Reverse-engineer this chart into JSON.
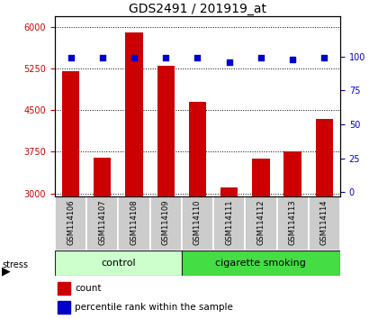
{
  "title": "GDS2491 / 201919_at",
  "samples": [
    "GSM114106",
    "GSM114107",
    "GSM114108",
    "GSM114109",
    "GSM114110",
    "GSM114111",
    "GSM114112",
    "GSM114113",
    "GSM114114"
  ],
  "counts": [
    5200,
    3650,
    5900,
    5300,
    4650,
    3100,
    3620,
    3750,
    4350
  ],
  "percentile_ranks": [
    99,
    99,
    99,
    99,
    99,
    96,
    99,
    98,
    99
  ],
  "bar_color": "#cc0000",
  "dot_color": "#0000cc",
  "ylim_left": [
    2950,
    6200
  ],
  "yticks_left": [
    3000,
    3750,
    4500,
    5250,
    6000
  ],
  "ylim_right": [
    -3,
    130
  ],
  "yticks_right": [
    0,
    25,
    50,
    75,
    100
  ],
  "grid_color": "#000000",
  "background_color": "#ffffff",
  "control_color": "#ccffcc",
  "smoking_color": "#44dd44",
  "label_box_color": "#cccccc",
  "stress_label": "stress",
  "legend_count_label": "count",
  "legend_pct_label": "percentile rank within the sample",
  "title_fontsize": 10,
  "tick_fontsize": 7,
  "sample_fontsize": 6,
  "group_fontsize": 8,
  "legend_fontsize": 7.5
}
